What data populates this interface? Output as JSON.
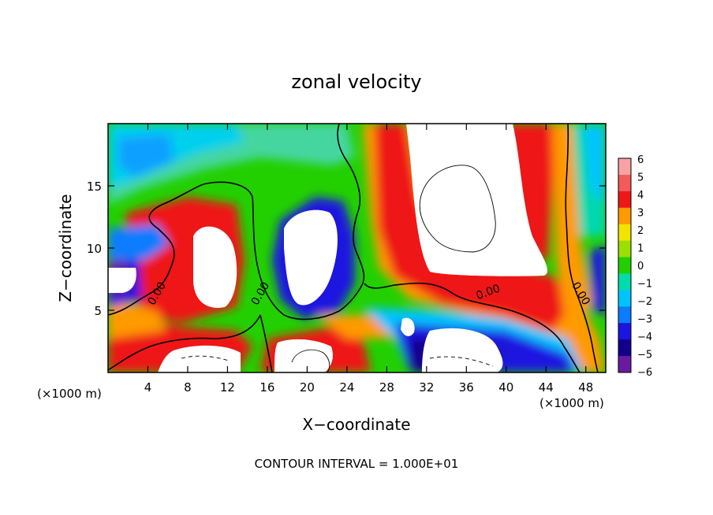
{
  "chart_data": {
    "type": "heatmap",
    "title": "zonal velocity",
    "xlabel": "X−coordinate",
    "ylabel": "Z−coordinate",
    "x_unit_label": "(×1000 m)",
    "y_unit_label": "(×1000 m)",
    "footer": "CONTOUR INTERVAL = 1.000E+01",
    "xlim": [
      0,
      50
    ],
    "ylim": [
      0,
      20
    ],
    "xticks": [
      4,
      8,
      12,
      16,
      20,
      24,
      28,
      32,
      36,
      40,
      44,
      48
    ],
    "xtick_labels": [
      "4",
      "8",
      "12",
      "16",
      "20",
      "24",
      "28",
      "32",
      "36",
      "40",
      "44",
      "48"
    ],
    "yticks": [
      5,
      10,
      15
    ],
    "ytick_labels": [
      "5",
      "10",
      "15"
    ],
    "colorbar": {
      "levels": [
        6,
        5,
        4,
        3,
        2,
        1,
        0,
        -1,
        -2,
        -3,
        -4,
        -5,
        -6
      ],
      "labels": [
        "6",
        "5",
        "4",
        "3",
        "2",
        "1",
        "0",
        "−1",
        "−2",
        "−3",
        "−4",
        "−5",
        "−6"
      ],
      "colors": [
        "#f7a3a3",
        "#f45a5a",
        "#ee1818",
        "#ff9a00",
        "#f2e400",
        "#9ae000",
        "#22d000",
        "#00ddaa",
        "#00c4ff",
        "#0b7cff",
        "#1c14e0",
        "#12008c",
        "#6a1aa0"
      ]
    },
    "contour_labels": [
      {
        "text": "0.00",
        "x": 5.2,
        "y": 6.2
      },
      {
        "text": "0.00",
        "x": 15.6,
        "y": 6.2
      },
      {
        "text": "0.00",
        "x": 38.3,
        "y": 6.2
      },
      {
        "text": "0.00",
        "x": 47.2,
        "y": 6.2
      }
    ],
    "colormap": "rainbow",
    "grid": false
  }
}
